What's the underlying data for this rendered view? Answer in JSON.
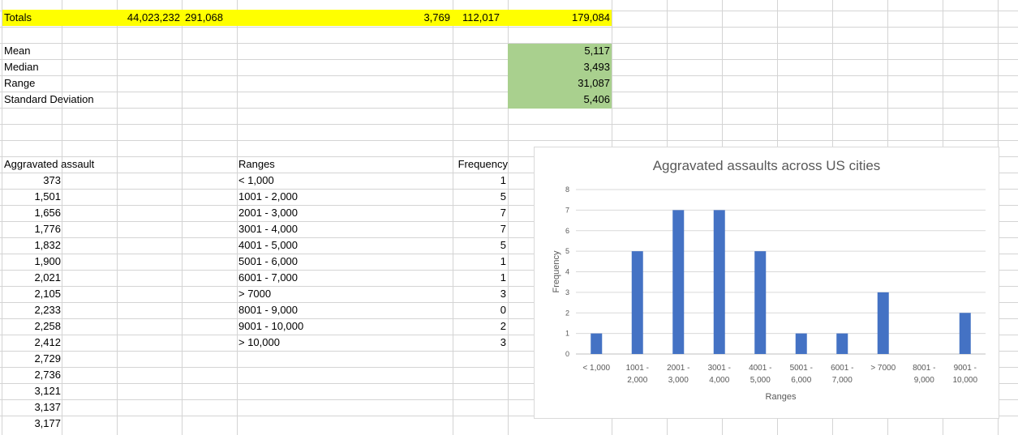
{
  "totals": {
    "label": "Totals",
    "values": [
      "44,023,232",
      "291,068",
      "3,769",
      "112,017",
      "179,084"
    ]
  },
  "stats": [
    {
      "label": "Mean",
      "value": "5,117"
    },
    {
      "label": "Median",
      "value": "3,493"
    },
    {
      "label": "Range",
      "value": "31,087"
    },
    {
      "label": "Standard Deviation",
      "value": "5,406"
    }
  ],
  "assault": {
    "header": "Aggravated assault",
    "values": [
      "373",
      "1,501",
      "1,656",
      "1,776",
      "1,832",
      "1,900",
      "2,021",
      "2,105",
      "2,233",
      "2,258",
      "2,412",
      "2,729",
      "2,736",
      "3,121",
      "3,137",
      "3,177"
    ]
  },
  "ranges": {
    "header": "Ranges",
    "values": [
      "< 1,000",
      "1001 - 2,000",
      "2001 - 3,000",
      "3001 - 4,000",
      "4001 - 5,000",
      "5001 - 6,000",
      "6001 - 7,000",
      "> 7000",
      "8001 - 9,000",
      "9001 - 10,000",
      "> 10,000"
    ]
  },
  "frequency": {
    "header": "Frequency",
    "values": [
      "1",
      "5",
      "7",
      "7",
      "5",
      "1",
      "1",
      "3",
      "0",
      "2",
      "3"
    ]
  },
  "colors": {
    "totals_fill": "#ffff00",
    "stats_fill": "#a9d08e",
    "bar": "#4472c4"
  },
  "chart_data": {
    "type": "bar",
    "title": "Aggravated assaults across US cities",
    "xlabel": "Ranges",
    "ylabel": "Frequency",
    "categories": [
      [
        "< 1,000",
        ""
      ],
      [
        "1001 -",
        "2,000"
      ],
      [
        "2001 -",
        "3,000"
      ],
      [
        "3001 -",
        "4,000"
      ],
      [
        "4001 -",
        "5,000"
      ],
      [
        "5001 -",
        "6,000"
      ],
      [
        "6001 -",
        "7,000"
      ],
      [
        "> 7000",
        ""
      ],
      [
        "8001 -",
        "9,000"
      ],
      [
        "9001 -",
        "10,000"
      ]
    ],
    "values": [
      1,
      5,
      7,
      7,
      5,
      1,
      1,
      3,
      0,
      2
    ],
    "ylim": [
      0,
      8
    ],
    "yticks": [
      "0",
      "1",
      "2",
      "3",
      "4",
      "5",
      "6",
      "7",
      "8"
    ],
    "grid": true
  }
}
